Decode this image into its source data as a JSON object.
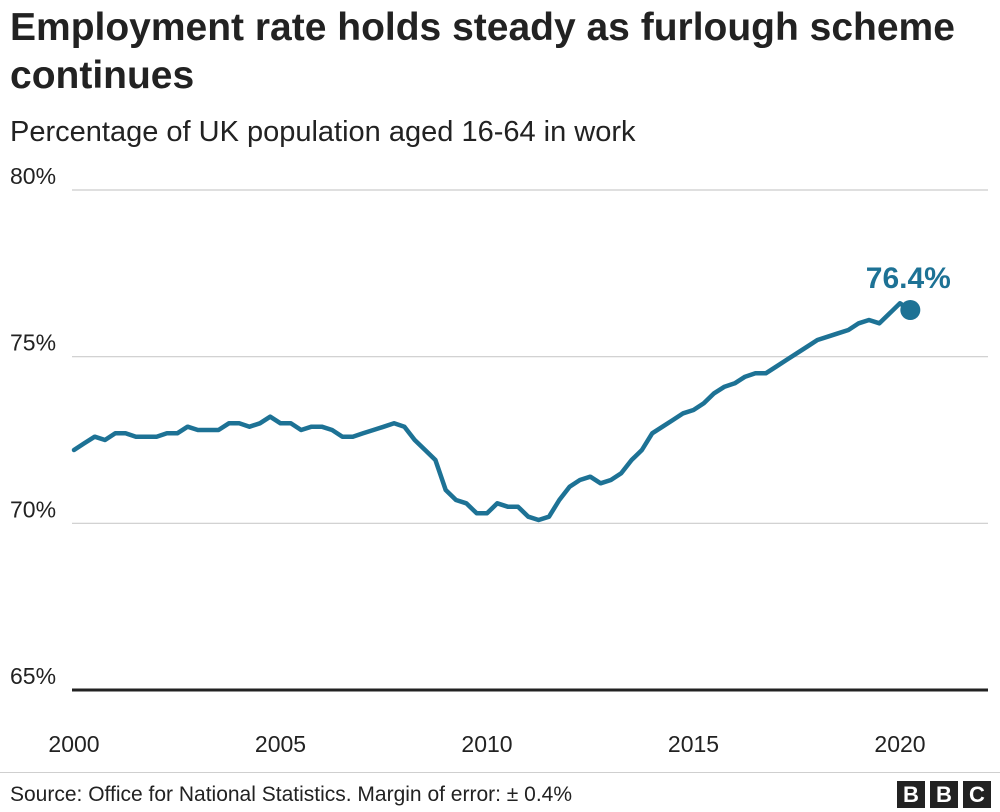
{
  "header": {
    "title": "Employment rate holds steady as furlough scheme continues",
    "subtitle": "Percentage of UK population aged 16-64 in work"
  },
  "footer": {
    "source": "Source: Office for National Statistics. Margin of error: ± 0.4%",
    "logo_text": "BBC"
  },
  "colors": {
    "line": "#1d7295",
    "grid": "#cccccc",
    "baseline": "#222222",
    "text": "#222222"
  },
  "chart_data": {
    "type": "line",
    "title": "Employment rate holds steady as furlough scheme continues",
    "subtitle": "Percentage of UK population aged 16-64 in work",
    "xlabel": "",
    "ylabel": "",
    "xlim": [
      2000,
      2022.5
    ],
    "ylim": [
      65,
      80
    ],
    "x_ticks": [
      2000,
      2005,
      2010,
      2015,
      2020
    ],
    "x_tick_labels": [
      "2000",
      "2005",
      "2010",
      "2015",
      "2020"
    ],
    "y_ticks": [
      65,
      70,
      75,
      80
    ],
    "y_tick_labels": [
      "65%",
      "70%",
      "75%",
      "80%"
    ],
    "grid": true,
    "legend": "none",
    "series": [
      {
        "x": [
          2000.0,
          2000.25,
          2000.5,
          2000.75,
          2001.0,
          2001.25,
          2001.5,
          2001.75,
          2002.0,
          2002.25,
          2002.5,
          2002.75,
          2003.0,
          2003.25,
          2003.5,
          2003.75,
          2004.0,
          2004.25,
          2004.5,
          2004.75,
          2005.0,
          2005.25,
          2005.5,
          2005.75,
          2006.0,
          2006.25,
          2006.5,
          2006.75,
          2007.0,
          2007.25,
          2007.5,
          2007.75,
          2008.0,
          2008.25,
          2008.5,
          2008.75,
          2009.0,
          2009.25,
          2009.5,
          2009.75,
          2010.0,
          2010.25,
          2010.5,
          2010.75,
          2011.0,
          2011.25,
          2011.5,
          2011.75,
          2012.0,
          2012.25,
          2012.5,
          2012.75,
          2013.0,
          2013.25,
          2013.5,
          2013.75,
          2014.0,
          2014.25,
          2014.5,
          2014.75,
          2015.0,
          2015.25,
          2015.5,
          2015.75,
          2016.0,
          2016.25,
          2016.5,
          2016.75,
          2017.0,
          2017.25,
          2017.5,
          2017.75,
          2018.0,
          2018.25,
          2018.5,
          2018.75,
          2019.0,
          2019.25,
          2019.5,
          2019.75,
          2020.0,
          2020.25
        ],
        "values": [
          72.2,
          72.4,
          72.6,
          72.5,
          72.7,
          72.7,
          72.6,
          72.6,
          72.6,
          72.7,
          72.7,
          72.9,
          72.8,
          72.8,
          72.8,
          73.0,
          73.0,
          72.9,
          73.0,
          73.2,
          73.0,
          73.0,
          72.8,
          72.9,
          72.9,
          72.8,
          72.6,
          72.6,
          72.7,
          72.8,
          72.9,
          73.0,
          72.9,
          72.5,
          72.2,
          71.9,
          71.0,
          70.7,
          70.6,
          70.3,
          70.3,
          70.6,
          70.5,
          70.5,
          70.2,
          70.1,
          70.2,
          70.7,
          71.1,
          71.3,
          71.4,
          71.2,
          71.3,
          71.5,
          71.9,
          72.2,
          72.7,
          72.9,
          73.1,
          73.3,
          73.4,
          73.6,
          73.9,
          74.1,
          74.2,
          74.4,
          74.5,
          74.5,
          74.7,
          74.9,
          75.1,
          75.3,
          75.5,
          75.6,
          75.7,
          75.8,
          76.0,
          76.1,
          76.0,
          76.3,
          76.6,
          76.4
        ],
        "highlight": {
          "x": 2020.25,
          "value": 76.4,
          "label": "76.4%"
        }
      }
    ]
  }
}
